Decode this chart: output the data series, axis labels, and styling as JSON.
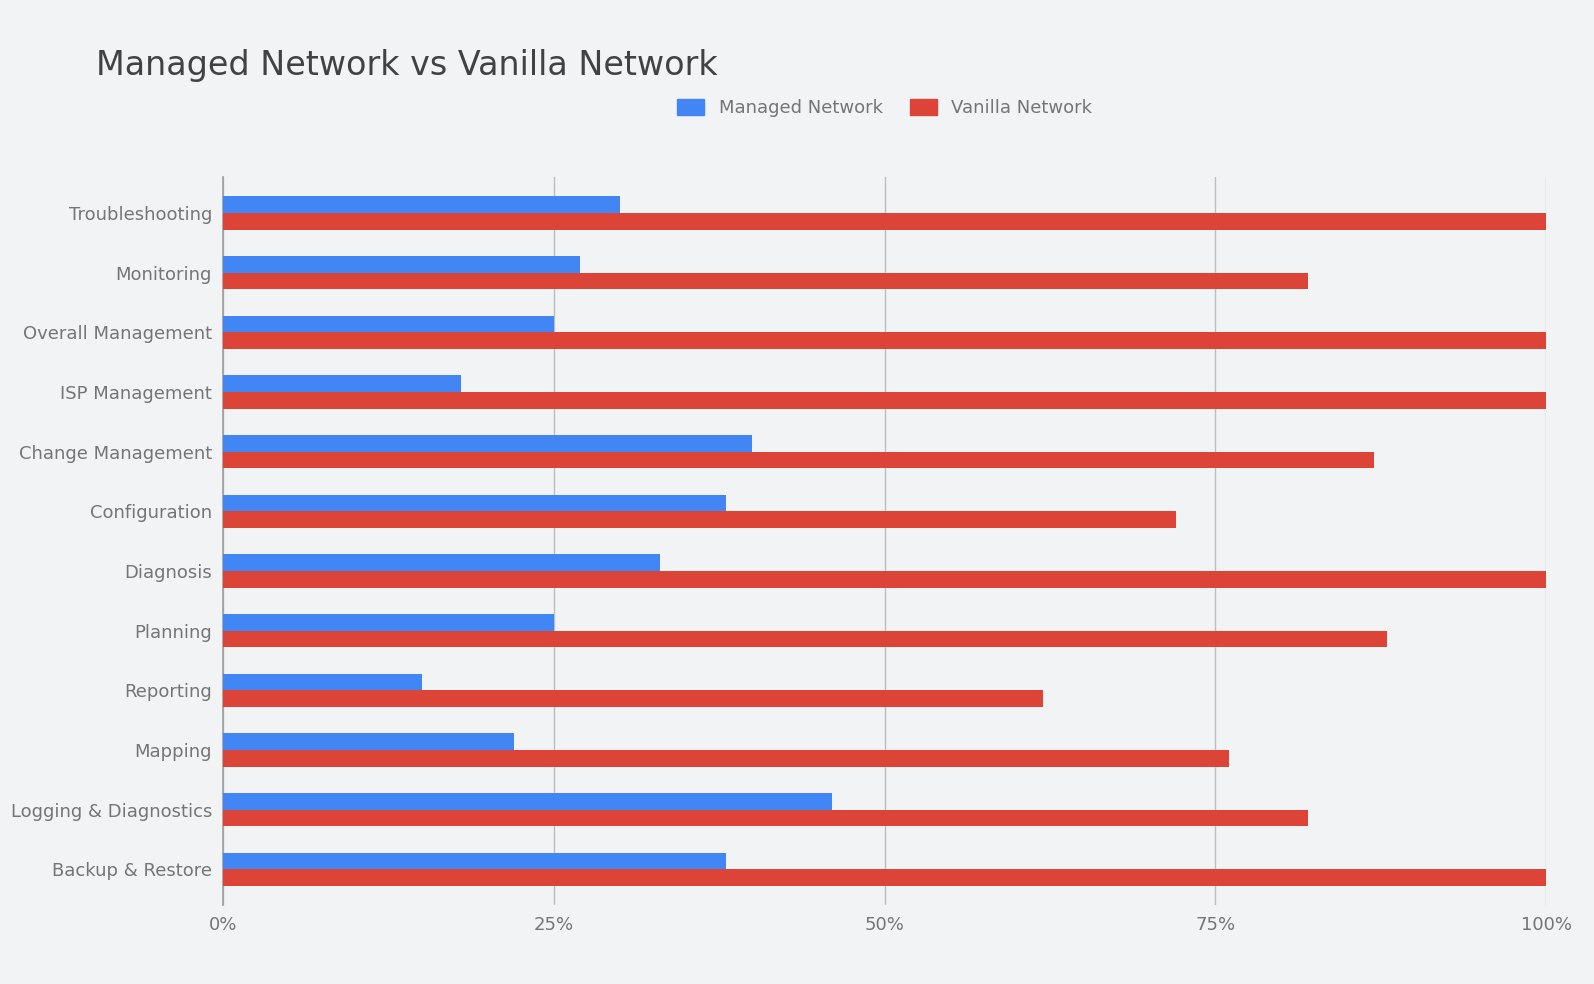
{
  "title": "Managed Network vs Vanilla Network",
  "categories": [
    "Troubleshooting",
    "Monitoring",
    "Overall Management",
    "ISP Management",
    "Change Management",
    "Configuration",
    "Diagnosis",
    "Planning",
    "Reporting",
    "Mapping",
    "Logging & Diagnostics",
    "Backup & Restore"
  ],
  "managed_values": [
    30,
    27,
    25,
    18,
    40,
    38,
    33,
    25,
    15,
    22,
    46,
    38
  ],
  "vanilla_values": [
    100,
    82,
    100,
    100,
    87,
    72,
    100,
    88,
    62,
    76,
    82,
    100
  ],
  "managed_color": "#4285F4",
  "vanilla_color": "#DB4437",
  "background_color": "#F1F3F4",
  "title_color": "#424242",
  "tick_label_color": "#757575",
  "grid_color": "#BDBDBD",
  "legend_labels": [
    "Managed Network",
    "Vanilla Network"
  ],
  "xlim": [
    0,
    100
  ],
  "xticks": [
    0,
    25,
    50,
    75,
    100
  ],
  "xtick_labels": [
    "0%",
    "25%",
    "50%",
    "75%",
    "100%"
  ],
  "bar_height": 0.28,
  "title_fontsize": 24,
  "tick_fontsize": 13,
  "legend_fontsize": 13
}
